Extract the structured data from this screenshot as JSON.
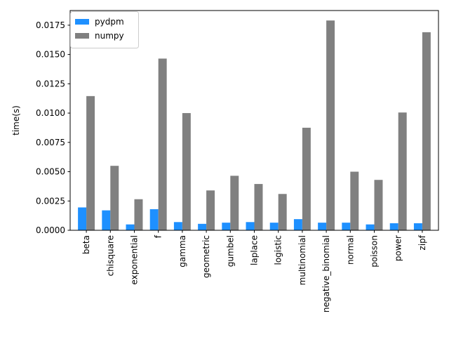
{
  "chart_data": {
    "type": "bar",
    "title": "",
    "xlabel": "",
    "ylabel": "time(s)",
    "ylim": [
      0,
      0.01875
    ],
    "yticks": [
      "0.0000",
      "0.0025",
      "0.0050",
      "0.0075",
      "0.0100",
      "0.0125",
      "0.0150",
      "0.0175"
    ],
    "categories": [
      "beta",
      "chisquare",
      "exponential",
      "f",
      "gamma",
      "geometric",
      "gumbel",
      "laplace",
      "logistic",
      "multinomial",
      "negative_binomial",
      "normal",
      "poisson",
      "power",
      "zipf"
    ],
    "series": [
      {
        "name": "pydpm",
        "color": "#1e90ff",
        "values": [
          0.00195,
          0.0017,
          0.0005,
          0.0018,
          0.0007,
          0.00055,
          0.00065,
          0.0007,
          0.00065,
          0.00095,
          0.00065,
          0.00065,
          0.0005,
          0.0006,
          0.0006
        ]
      },
      {
        "name": "numpy",
        "color": "#808080",
        "values": [
          0.01145,
          0.0055,
          0.00265,
          0.01465,
          0.01,
          0.0034,
          0.00465,
          0.00395,
          0.0031,
          0.00875,
          0.0179,
          0.005,
          0.0043,
          0.01005,
          0.0169
        ]
      }
    ],
    "grid": false,
    "legend_position": "top-left"
  }
}
